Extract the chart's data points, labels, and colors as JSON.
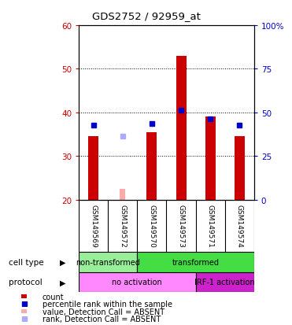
{
  "title": "GDS2752 / 92959_at",
  "samples": [
    "GSM149569",
    "GSM149572",
    "GSM149570",
    "GSM149573",
    "GSM149571",
    "GSM149574"
  ],
  "count_values": [
    34.5,
    null,
    35.5,
    53.0,
    39.0,
    34.5
  ],
  "count_absent": [
    null,
    22.5,
    null,
    null,
    null,
    null
  ],
  "percentile_values": [
    37.0,
    null,
    37.5,
    40.5,
    38.5,
    37.0
  ],
  "percentile_absent": [
    null,
    34.5,
    null,
    null,
    null,
    null
  ],
  "ylim_left": [
    20,
    60
  ],
  "ylim_right": [
    0,
    100
  ],
  "yticks_left": [
    20,
    30,
    40,
    50,
    60
  ],
  "yticks_right": [
    0,
    25,
    50,
    75,
    100
  ],
  "ytick_labels_right": [
    "0",
    "25",
    "50",
    "75",
    "100%"
  ],
  "bar_color": "#cc0000",
  "bar_absent_color": "#ffaaaa",
  "dot_color": "#0000cc",
  "dot_absent_color": "#aaaaff",
  "cell_type_groups": [
    {
      "label": "non-transformed",
      "start": 0,
      "end": 2,
      "color": "#99ee99"
    },
    {
      "label": "transformed",
      "start": 2,
      "end": 6,
      "color": "#44dd44"
    }
  ],
  "protocol_groups": [
    {
      "label": "no activation",
      "start": 0,
      "end": 4,
      "color": "#ff88ff"
    },
    {
      "label": "IRF-1 activation",
      "start": 4,
      "end": 6,
      "color": "#cc22cc"
    }
  ],
  "bar_color_left": "#cc0000",
  "bar_color_right": "#0000cc",
  "sample_bg_color": "#cccccc",
  "bar_width": 0.35
}
